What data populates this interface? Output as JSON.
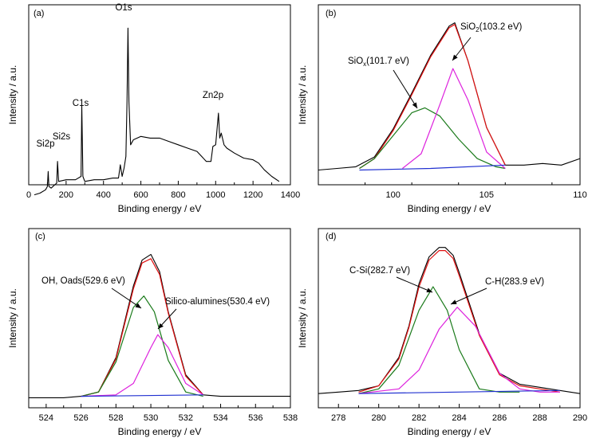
{
  "chart_data": [
    {
      "type": "line",
      "panel_label": "(a)",
      "xlabel": "Binding energy / eV",
      "ylabel": "Intensity / a.u.",
      "xlim": [
        0,
        1400
      ],
      "x_ticks": [
        0,
        200,
        400,
        600,
        800,
        1000,
        1200,
        1400
      ],
      "y_ticks_labeled": false,
      "grid": false,
      "series": [
        {
          "color": "#000000",
          "x": [
            30,
            60,
            90,
            100,
            104,
            108,
            120,
            150,
            154,
            160,
            200,
            250,
            280,
            284,
            290,
            300,
            350,
            400,
            450,
            480,
            490,
            500,
            510,
            520,
            526,
            531,
            536,
            545,
            560,
            600,
            650,
            700,
            750,
            800,
            850,
            900,
            950,
            975,
            985,
            1000,
            1015,
            1022,
            1030,
            1045,
            1060,
            1100,
            1150,
            1200,
            1230,
            1260,
            1300,
            1340
          ],
          "y": [
            0.0,
            0.01,
            0.03,
            0.05,
            0.14,
            0.05,
            0.04,
            0.07,
            0.2,
            0.08,
            0.09,
            0.09,
            0.11,
            0.54,
            0.11,
            0.08,
            0.09,
            0.09,
            0.1,
            0.1,
            0.18,
            0.11,
            0.16,
            0.23,
            0.56,
            1.0,
            0.56,
            0.3,
            0.33,
            0.35,
            0.34,
            0.34,
            0.32,
            0.3,
            0.28,
            0.26,
            0.2,
            0.2,
            0.29,
            0.3,
            0.49,
            0.34,
            0.37,
            0.3,
            0.28,
            0.25,
            0.22,
            0.21,
            0.19,
            0.15,
            0.11,
            0.08
          ]
        }
      ],
      "annotations": [
        {
          "text": "O1s",
          "x": 526,
          "y": 1.04
        },
        {
          "text": "C1s",
          "x": 284,
          "y": 0.58
        },
        {
          "text": "Zn2p",
          "x": 1022,
          "y": 0.53
        },
        {
          "text": "Si2s",
          "x": 154,
          "y": 0.24
        },
        {
          "text": "Si2p",
          "x": 104,
          "y": 0.18
        }
      ]
    },
    {
      "type": "line",
      "panel_label": "(b)",
      "xlabel": "Binding energy / eV",
      "ylabel": "Intensity / a.u.",
      "xlim": [
        96,
        110
      ],
      "x_ticks": [
        100,
        105,
        110
      ],
      "y_ticks_labeled": false,
      "grid": false,
      "series": [
        {
          "color": "#000000",
          "x": [
            96,
            97,
            98,
            99,
            100,
            101,
            102,
            103,
            103.3,
            104,
            105,
            106,
            107,
            108,
            109,
            110
          ],
          "y": [
            0.09,
            0.1,
            0.11,
            0.17,
            0.34,
            0.56,
            0.79,
            0.97,
            0.99,
            0.76,
            0.35,
            0.12,
            0.12,
            0.13,
            0.12,
            0.16
          ]
        },
        {
          "color": "#e01010",
          "x": [
            98.2,
            99,
            100,
            101,
            102,
            103,
            103.3,
            104,
            105,
            106
          ],
          "y": [
            0.1,
            0.16,
            0.33,
            0.55,
            0.78,
            0.96,
            0.98,
            0.76,
            0.35,
            0.12
          ]
        },
        {
          "color": "#1a7a1a",
          "x": [
            98.2,
            99,
            100,
            101,
            101.7,
            102.5,
            103.5,
            104.5,
            105.5,
            106
          ],
          "y": [
            0.1,
            0.16,
            0.3,
            0.44,
            0.47,
            0.42,
            0.28,
            0.16,
            0.11,
            0.1
          ]
        },
        {
          "color": "#dd22dd",
          "x": [
            100.5,
            101.5,
            102.5,
            103.2,
            104,
            105,
            106
          ],
          "y": [
            0.1,
            0.19,
            0.49,
            0.71,
            0.52,
            0.2,
            0.1
          ]
        },
        {
          "color": "#2030d0",
          "x": [
            98.2,
            102,
            106
          ],
          "y": [
            0.09,
            0.1,
            0.12
          ]
        }
      ],
      "annotations": [
        {
          "text": "SiO",
          "sub": "x",
          "rest": "(101.7 eV)",
          "x": 101.7
        },
        {
          "text": "SiO",
          "sub": "2",
          "rest": "(103.2 eV)",
          "x": 103.2
        }
      ]
    },
    {
      "type": "line",
      "panel_label": "(c)",
      "xlabel": "Binding energy / eV",
      "ylabel": "Intensity / a.u.",
      "xlim": [
        523,
        538
      ],
      "x_ticks": [
        524,
        526,
        528,
        530,
        532,
        534,
        536,
        538
      ],
      "y_ticks_labeled": false,
      "grid": false,
      "series": [
        {
          "color": "#000000",
          "x": [
            523,
            525,
            526,
            527,
            528,
            529,
            529.5,
            530,
            530.5,
            531,
            532,
            533,
            534,
            536,
            538
          ],
          "y": [
            0.02,
            0.02,
            0.03,
            0.06,
            0.3,
            0.8,
            0.98,
            1.02,
            0.9,
            0.62,
            0.18,
            0.04,
            0.03,
            0.03,
            0.03
          ]
        },
        {
          "color": "#e01010",
          "x": [
            526,
            527,
            528,
            529,
            529.5,
            530,
            530.5,
            531,
            532,
            533
          ],
          "y": [
            0.03,
            0.06,
            0.29,
            0.78,
            0.96,
            0.99,
            0.88,
            0.61,
            0.17,
            0.04
          ]
        },
        {
          "color": "#1a7a1a",
          "x": [
            526,
            527,
            528,
            529,
            529.6,
            530.2,
            531,
            532,
            533
          ],
          "y": [
            0.03,
            0.06,
            0.27,
            0.65,
            0.73,
            0.62,
            0.28,
            0.06,
            0.03
          ]
        },
        {
          "color": "#dd22dd",
          "x": [
            526,
            528,
            529,
            530,
            530.4,
            531,
            532,
            533
          ],
          "y": [
            0.03,
            0.04,
            0.12,
            0.37,
            0.46,
            0.37,
            0.12,
            0.04
          ]
        },
        {
          "color": "#2030d0",
          "x": [
            526,
            533
          ],
          "y": [
            0.03,
            0.04
          ]
        }
      ],
      "annotations": [
        {
          "text": "OH, Oads(529.6 eV)",
          "x": 529.6
        },
        {
          "text": "Silico-alumines(530.4 eV)",
          "x": 530.4
        }
      ]
    },
    {
      "type": "line",
      "panel_label": "(d)",
      "xlabel": "Binding energy / eV",
      "ylabel": "Intensity / a.u.",
      "xlim": [
        277,
        290
      ],
      "x_ticks": [
        278,
        280,
        282,
        284,
        286,
        288,
        290
      ],
      "y_ticks_labeled": false,
      "grid": false,
      "series": [
        {
          "color": "#000000",
          "x": [
            277,
            278,
            279,
            280,
            281,
            281.5,
            282,
            282.5,
            283,
            283.3,
            283.7,
            284,
            285,
            286,
            287,
            288,
            289,
            290
          ],
          "y": [
            0.07,
            0.08,
            0.09,
            0.12,
            0.3,
            0.5,
            0.77,
            0.94,
            1.0,
            1.0,
            0.95,
            0.84,
            0.45,
            0.2,
            0.13,
            0.11,
            0.09,
            0.07
          ]
        },
        {
          "color": "#e01010",
          "x": [
            279,
            280,
            281,
            281.5,
            282,
            282.5,
            283,
            283.3,
            283.7,
            284,
            285,
            286,
            287,
            288,
            289
          ],
          "y": [
            0.08,
            0.12,
            0.29,
            0.49,
            0.75,
            0.92,
            0.98,
            0.98,
            0.93,
            0.82,
            0.44,
            0.19,
            0.12,
            0.1,
            0.08
          ]
        },
        {
          "color": "#1a7a1a",
          "x": [
            279,
            280,
            281,
            282,
            282.7,
            283.4,
            284,
            285,
            286,
            287
          ],
          "y": [
            0.07,
            0.1,
            0.25,
            0.6,
            0.75,
            0.6,
            0.35,
            0.1,
            0.08,
            0.08
          ]
        },
        {
          "color": "#dd22dd",
          "x": [
            279,
            281,
            282,
            283,
            283.9,
            284.8,
            286,
            287,
            288,
            289
          ],
          "y": [
            0.07,
            0.1,
            0.22,
            0.48,
            0.62,
            0.5,
            0.2,
            0.1,
            0.08,
            0.08
          ]
        },
        {
          "color": "#2030d0",
          "x": [
            279,
            289
          ],
          "y": [
            0.07,
            0.09
          ]
        }
      ],
      "annotations": [
        {
          "text": "C-Si(282.7 eV)",
          "x": 282.7
        },
        {
          "text": "C-H(283.9 eV)",
          "x": 283.9
        }
      ]
    }
  ]
}
